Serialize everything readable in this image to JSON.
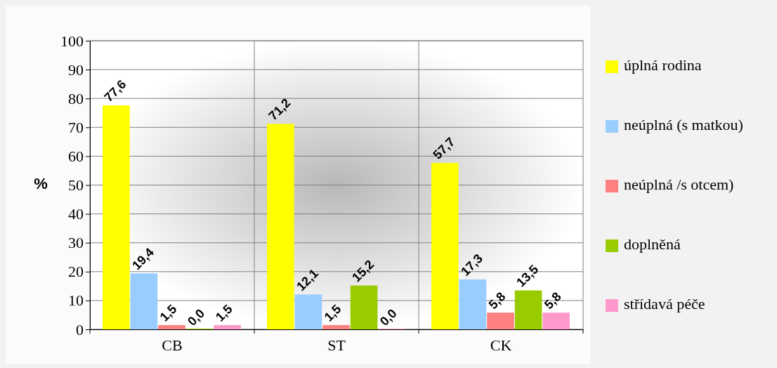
{
  "chart_data": {
    "type": "bar",
    "ylabel": "%",
    "categories": [
      "CB",
      "ST",
      "CK"
    ],
    "series": [
      {
        "name": "úplná rodina",
        "color": "#ffff00",
        "values": [
          77.6,
          71.2,
          57.7
        ],
        "value_labels": [
          "77,6",
          "71,2",
          "57,7"
        ]
      },
      {
        "name": "neúplná (s matkou)",
        "color": "#99ccff",
        "values": [
          19.4,
          12.1,
          17.3
        ],
        "value_labels": [
          "19,4",
          "12,1",
          "17,3"
        ]
      },
      {
        "name": "neúplná /s otcem)",
        "color": "#ff8080",
        "values": [
          1.5,
          1.5,
          5.8
        ],
        "value_labels": [
          "1,5",
          "1,5",
          "5,8"
        ]
      },
      {
        "name": "doplněná",
        "color": "#99cc00",
        "values": [
          0.0,
          15.2,
          13.5
        ],
        "value_labels": [
          "0,0",
          "15,2",
          "13,5"
        ]
      },
      {
        "name": "střídavá péče",
        "color": "#ff99cc",
        "values": [
          1.5,
          0.0,
          5.8
        ],
        "value_labels": [
          "1,5",
          "0,0",
          "5,8"
        ]
      }
    ],
    "ylim": [
      0,
      100
    ],
    "yticks": [
      0,
      10,
      20,
      30,
      40,
      50,
      60,
      70,
      80,
      90,
      100
    ],
    "grid": true,
    "legend": "right"
  }
}
